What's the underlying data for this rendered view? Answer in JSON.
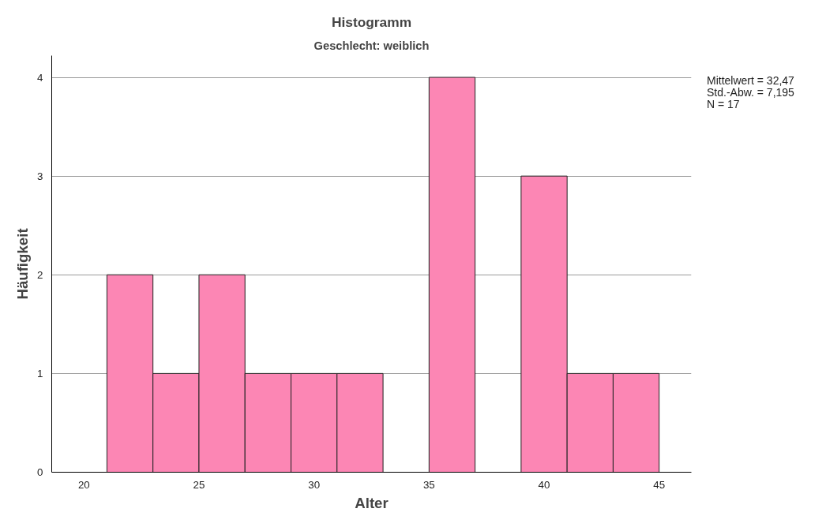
{
  "chart_data": {
    "type": "histogram",
    "title": "Histogramm",
    "subtitle": "Geschlecht: weiblich",
    "xlabel": "Alter",
    "ylabel": "Häufigkeit",
    "bins": [
      21,
      23,
      25,
      27,
      29,
      31,
      33,
      35,
      37,
      39,
      41,
      43,
      45
    ],
    "values": [
      2,
      1,
      2,
      1,
      1,
      1,
      0,
      4,
      0,
      3,
      1,
      1
    ],
    "color": "#fc86b4",
    "xlim": [
      18.6,
      46.4
    ],
    "xticks": [
      20,
      25,
      30,
      35,
      40,
      45
    ],
    "ylim": [
      0,
      4.22
    ],
    "yticks": [
      0,
      1,
      2,
      3,
      4
    ],
    "grid": "y",
    "annotations": [
      "Mittelwert = 32,47",
      "Std.-Abw. = 7,195",
      "N = 17"
    ]
  }
}
